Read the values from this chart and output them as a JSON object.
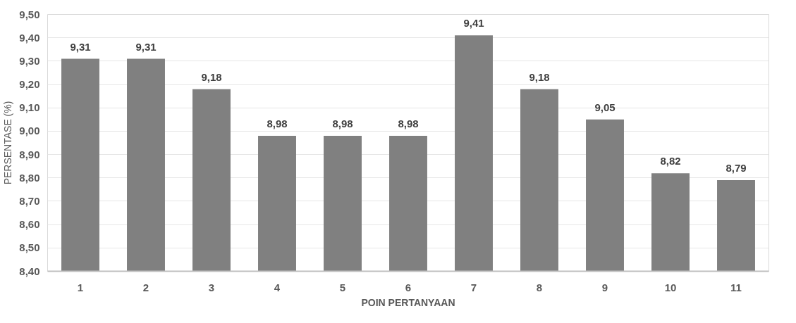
{
  "chart_data": {
    "type": "bar",
    "xlabel": "POIN PERTANYAAN",
    "ylabel": "PERSENTASE (%)",
    "categories": [
      "1",
      "2",
      "3",
      "4",
      "5",
      "6",
      "7",
      "8",
      "9",
      "10",
      "11"
    ],
    "values": [
      9.31,
      9.31,
      9.18,
      8.98,
      8.98,
      8.98,
      9.41,
      9.18,
      9.05,
      8.82,
      8.79
    ],
    "value_labels": [
      "9,31",
      "9,31",
      "9,18",
      "8,98",
      "8,98",
      "8,98",
      "9,41",
      "9,18",
      "9,05",
      "8,82",
      "8,79"
    ],
    "color": "#808080",
    "ylim": [
      8.4,
      9.5
    ],
    "yticks": [
      {
        "value": 8.4,
        "label": "8,40"
      },
      {
        "value": 8.5,
        "label": "8,50"
      },
      {
        "value": 8.6,
        "label": "8,60"
      },
      {
        "value": 8.7,
        "label": "8,70"
      },
      {
        "value": 8.8,
        "label": "8,80"
      },
      {
        "value": 8.9,
        "label": "8,90"
      },
      {
        "value": 9.0,
        "label": "9,00"
      },
      {
        "value": 9.1,
        "label": "9,10"
      },
      {
        "value": 9.2,
        "label": "9,20"
      },
      {
        "value": 9.3,
        "label": "9,30"
      },
      {
        "value": 9.4,
        "label": "9,40"
      },
      {
        "value": 9.5,
        "label": "9,50"
      }
    ],
    "grid": "y"
  }
}
